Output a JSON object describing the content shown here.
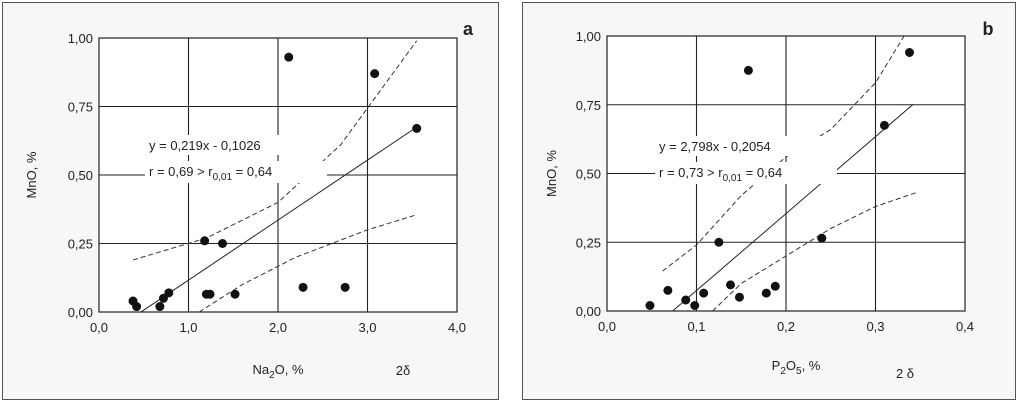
{
  "chart_data": [
    {
      "type": "scatter",
      "panel_label": "a",
      "xlabel_main": "Na",
      "xlabel_sub": "2",
      "xlabel_rest": "O, %",
      "ylabel": "MnO, %",
      "xlim": [
        0,
        4
      ],
      "ylim": [
        0,
        1
      ],
      "xticks": [
        0,
        1,
        2,
        3,
        4
      ],
      "yticks": [
        0,
        0.25,
        0.5,
        0.75,
        1
      ],
      "xtick_labels": [
        "0,0",
        "1,0",
        "2,0",
        "3,0",
        "4,0"
      ],
      "ytick_labels": [
        "0,00",
        "0,25",
        "0,50",
        "0,75",
        "1,00"
      ],
      "grid": true,
      "points": [
        {
          "x": 0.38,
          "y": 0.04
        },
        {
          "x": 0.42,
          "y": 0.02
        },
        {
          "x": 0.68,
          "y": 0.02
        },
        {
          "x": 0.72,
          "y": 0.05
        },
        {
          "x": 0.78,
          "y": 0.07
        },
        {
          "x": 1.18,
          "y": 0.26
        },
        {
          "x": 1.2,
          "y": 0.065
        },
        {
          "x": 1.24,
          "y": 0.065
        },
        {
          "x": 1.38,
          "y": 0.25
        },
        {
          "x": 1.52,
          "y": 0.065
        },
        {
          "x": 2.12,
          "y": 0.93
        },
        {
          "x": 2.28,
          "y": 0.09
        },
        {
          "x": 2.75,
          "y": 0.09
        },
        {
          "x": 3.08,
          "y": 0.87
        },
        {
          "x": 3.55,
          "y": 0.67
        }
      ],
      "regression": {
        "slope": 0.219,
        "intercept": -0.1026,
        "x_from": 0.47,
        "x_to": 3.55
      },
      "conf_upper": [
        [
          0.38,
          0.19
        ],
        [
          1.2,
          0.27
        ],
        [
          2.0,
          0.4
        ],
        [
          2.7,
          0.61
        ],
        [
          3.55,
          0.99
        ]
      ],
      "conf_lower": [
        [
          1.12,
          0.0
        ],
        [
          1.6,
          0.1
        ],
        [
          2.2,
          0.2
        ],
        [
          3.0,
          0.3
        ],
        [
          3.55,
          0.355
        ]
      ],
      "equation_line1": "y = 0,219x - 0,1026",
      "equation_line2_main": "r = 0,69 > r",
      "equation_line2_sub": "0,01",
      "equation_line2_rest": " = 0,64",
      "sigma_label": "2δ"
    },
    {
      "type": "scatter",
      "panel_label": "b",
      "xlabel_main": "P",
      "xlabel_sub": "2",
      "xlabel_mid": "O",
      "xlabel_sub2": "5",
      "xlabel_rest": ", %",
      "ylabel": "MnO, %",
      "xlim": [
        0,
        0.4
      ],
      "ylim": [
        0,
        1
      ],
      "xticks": [
        0,
        0.1,
        0.2,
        0.3,
        0.4
      ],
      "yticks": [
        0,
        0.25,
        0.5,
        0.75,
        1
      ],
      "xtick_labels": [
        "0,0",
        "0,1",
        "0,2",
        "0,3",
        "0,4"
      ],
      "ytick_labels": [
        "0,00",
        "0,25",
        "0,50",
        "0,75",
        "1,00"
      ],
      "grid": true,
      "points": [
        {
          "x": 0.048,
          "y": 0.02
        },
        {
          "x": 0.068,
          "y": 0.075
        },
        {
          "x": 0.088,
          "y": 0.04
        },
        {
          "x": 0.098,
          "y": 0.02
        },
        {
          "x": 0.108,
          "y": 0.065
        },
        {
          "x": 0.125,
          "y": 0.25
        },
        {
          "x": 0.138,
          "y": 0.095
        },
        {
          "x": 0.148,
          "y": 0.05
        },
        {
          "x": 0.158,
          "y": 0.875
        },
        {
          "x": 0.178,
          "y": 0.065
        },
        {
          "x": 0.188,
          "y": 0.09
        },
        {
          "x": 0.24,
          "y": 0.265
        },
        {
          "x": 0.31,
          "y": 0.675
        },
        {
          "x": 0.338,
          "y": 0.94
        }
      ],
      "regression": {
        "slope": 2.798,
        "intercept": -0.2054,
        "x_from": 0.074,
        "x_to": 0.342
      },
      "conf_upper": [
        [
          0.062,
          0.145
        ],
        [
          0.1,
          0.24
        ],
        [
          0.15,
          0.42
        ],
        [
          0.2,
          0.56
        ],
        [
          0.25,
          0.66
        ],
        [
          0.3,
          0.83
        ],
        [
          0.332,
          1.0
        ]
      ],
      "conf_lower": [
        [
          0.118,
          0.0
        ],
        [
          0.15,
          0.1
        ],
        [
          0.2,
          0.2
        ],
        [
          0.25,
          0.3
        ],
        [
          0.3,
          0.38
        ],
        [
          0.345,
          0.43
        ]
      ],
      "equation_line1": "y = 2,798x - 0,2054",
      "equation_line2_main": "r = 0,73 > r",
      "equation_line2_sub": "0,01",
      "equation_line2_rest": " = 0,64",
      "sigma_label": "2 δ"
    }
  ]
}
